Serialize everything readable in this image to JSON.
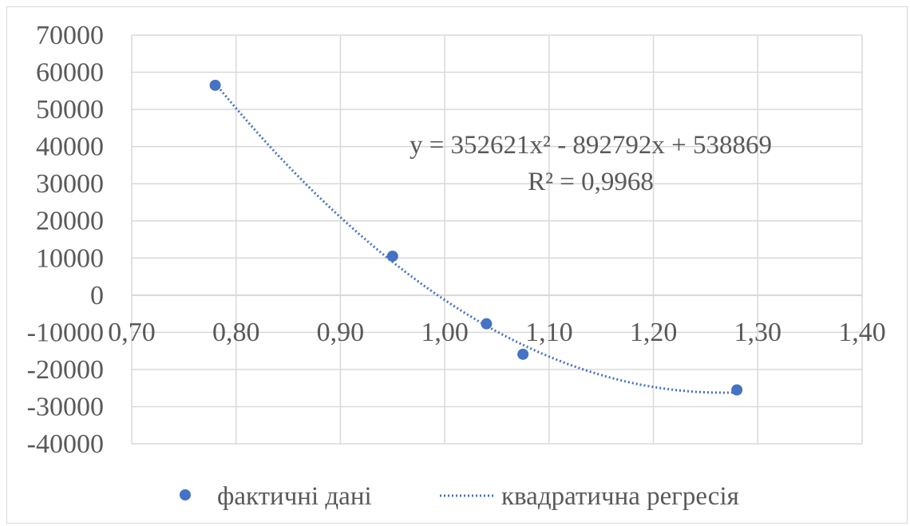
{
  "chart_data": {
    "type": "scatter",
    "title": "",
    "xlabel": "",
    "ylabel": "",
    "xlim": [
      0.7,
      1.4
    ],
    "ylim": [
      -40000,
      70000
    ],
    "x_ticks": [
      0.7,
      0.8,
      0.9,
      1.0,
      1.1,
      1.2,
      1.3,
      1.4
    ],
    "x_tick_labels": [
      "0,70",
      "0,80",
      "0,90",
      "1,00",
      "1,10",
      "1,20",
      "1,30",
      "1,40"
    ],
    "y_ticks": [
      70000,
      60000,
      50000,
      40000,
      30000,
      20000,
      10000,
      0,
      -10000,
      -20000,
      -30000,
      -40000
    ],
    "y_tick_labels": [
      "70000",
      "60000",
      "50000",
      "40000",
      "30000",
      "20000",
      "10000",
      "0",
      "-10000",
      "-20000",
      "-30000",
      "-40000"
    ],
    "grid": true,
    "legend_position": "bottom",
    "series": [
      {
        "name": "фактичні дані",
        "kind": "markers",
        "color": "#4472c4",
        "points": [
          {
            "x": 0.78,
            "y": 56500
          },
          {
            "x": 0.95,
            "y": 10500
          },
          {
            "x": 1.04,
            "y": -7700
          },
          {
            "x": 1.075,
            "y": -15900
          },
          {
            "x": 1.28,
            "y": -25500
          }
        ]
      },
      {
        "name": "квадратична регресія",
        "kind": "dotted-trendline",
        "color": "#4472c4",
        "coefficients": {
          "a": 352621,
          "b": -892792,
          "c": 538869
        },
        "x_range": [
          0.78,
          1.28
        ]
      }
    ],
    "annotations": {
      "equation": "y = 352621x² - 892792x + 538869",
      "r_squared": "R² = 0,9968"
    }
  }
}
